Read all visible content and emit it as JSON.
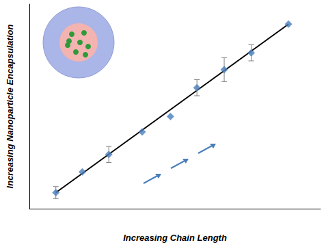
{
  "chart_data": {
    "type": "scatter",
    "x_label": "Increasing Chain Length",
    "y_label": "Increasing Nanoparticle Encapsulation",
    "x": [
      1,
      2,
      3,
      4.26,
      5.33,
      6.33,
      7.36,
      8.38,
      9.79
    ],
    "series": [
      {
        "type": "scatter",
        "color": "#4a7ebb",
        "marker": "diamond",
        "values": [
          0.8,
          1.83,
          2.7,
          3.83,
          4.6,
          6.03,
          6.93,
          7.77,
          9.2
        ],
        "errors": [
          0.3,
          0,
          0.4,
          0,
          0,
          0.4,
          0.6,
          0.4,
          0
        ]
      },
      {
        "type": "line",
        "color": "#000000",
        "line_style": "solid",
        "x": [
          1,
          9.79
        ],
        "values": [
          0.8,
          9.2
        ]
      }
    ],
    "xlim": [
      0,
      11
    ],
    "ylim": [
      0,
      10.2
    ],
    "grid": false,
    "tick_labels": false
  }
}
